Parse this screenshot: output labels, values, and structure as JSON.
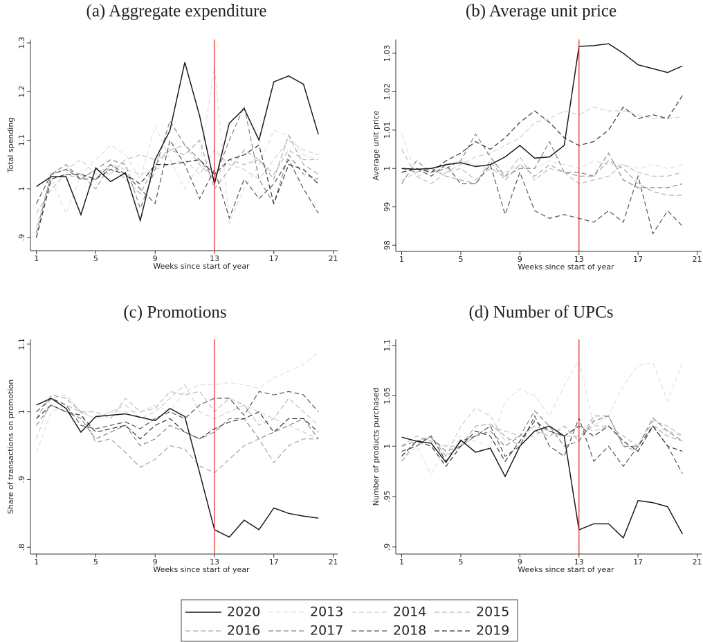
{
  "chart_data": [
    {
      "type": "line",
      "title": "(a) Aggregate expenditure",
      "xlabel": "Weeks since start of year",
      "ylabel": "Total spending",
      "x": [
        1,
        2,
        3,
        4,
        5,
        6,
        7,
        8,
        9,
        10,
        11,
        12,
        13,
        14,
        15,
        16,
        17,
        18,
        19,
        20
      ],
      "xlim": [
        0.6,
        21.3
      ],
      "xticks": [
        1,
        5,
        9,
        13,
        17,
        21
      ],
      "ylim": [
        0.873,
        1.307
      ],
      "yticks": [
        {
          "value": 0.9,
          "label": ".9"
        },
        1,
        1.1,
        1.2,
        1.3
      ],
      "vline": 13,
      "vline_color": "#e8302a",
      "series": [
        {
          "name": "2020",
          "color": "#1a1a1a",
          "line_style": "solid",
          "values": [
            1.005,
            1.025,
            1.025,
            0.947,
            1.043,
            1.015,
            1.033,
            0.935,
            1.06,
            1.12,
            1.26,
            1.15,
            1.01,
            1.135,
            1.165,
            1.1,
            1.22,
            1.232,
            1.215,
            1.112
          ]
        },
        {
          "name": "2013",
          "color": "#e0e0e0",
          "line_style": "dashed",
          "values": [
            0.9,
            1.02,
            0.95,
            1.03,
            1.06,
            1.09,
            1.07,
            1.02,
            1.13,
            1.06,
            1.0,
            1.05,
            1.25,
            0.93,
            1.0,
            1.05,
            1.12,
            1.11,
            1.07,
            1.06
          ]
        },
        {
          "name": "2014",
          "color": "#cfcfcf",
          "line_style": "dashed",
          "values": [
            0.92,
            1.03,
            1.04,
            1.06,
            1.03,
            1.05,
            1.04,
            1.03,
            1.04,
            1.05,
            1.06,
            1.03,
            1.08,
            1.05,
            1.04,
            1.02,
            1.06,
            1.1,
            1.08,
            1.07
          ]
        },
        {
          "name": "2015",
          "color": "#bdbdbd",
          "line_style": "dashed",
          "values": [
            0.95,
            1.0,
            1.03,
            1.02,
            1.04,
            1.03,
            1.06,
            1.07,
            1.06,
            1.08,
            1.09,
            1.05,
            1.02,
            1.06,
            1.05,
            1.06,
            1.03,
            1.08,
            1.06,
            1.06
          ]
        },
        {
          "name": "2016",
          "color": "#a6a6a6",
          "line_style": "dashed",
          "values": [
            0.9,
            1.03,
            1.04,
            1.03,
            1.0,
            1.05,
            1.02,
            0.99,
            1.05,
            1.08,
            1.07,
            1.1,
            1.0,
            1.04,
            1.08,
            1.06,
            1.02,
            1.11,
            1.05,
            1.03
          ]
        },
        {
          "name": "2017",
          "color": "#858585",
          "line_style": "dashed",
          "values": [
            0.91,
            1.03,
            1.05,
            1.02,
            1.04,
            1.06,
            1.05,
            0.96,
            1.04,
            1.14,
            1.09,
            1.06,
            1.02,
            1.1,
            1.17,
            1.02,
            0.97,
            1.07,
            1.03,
            1.02
          ]
        },
        {
          "name": "2018",
          "color": "#555555",
          "line_style": "dashed",
          "values": [
            0.97,
            1.03,
            1.04,
            1.02,
            1.02,
            1.05,
            1.03,
            1.0,
            0.97,
            1.1,
            1.05,
            0.98,
            1.04,
            0.94,
            1.02,
            0.98,
            1.01,
            1.06,
            1.0,
            0.95
          ]
        },
        {
          "name": "2019",
          "color": "#333333",
          "line_style": "dashed",
          "values": [
            0.9,
            1.02,
            1.03,
            1.03,
            1.02,
            1.04,
            1.03,
            1.01,
            1.05,
            1.05,
            1.055,
            1.06,
            1.03,
            1.06,
            1.07,
            1.09,
            0.97,
            1.05,
            1.04,
            1.01
          ]
        }
      ]
    },
    {
      "type": "line",
      "title": "(b) Average unit price",
      "xlabel": "Weeks since start of year",
      "ylabel": "Average unit price",
      "x": [
        1,
        2,
        3,
        4,
        5,
        6,
        7,
        8,
        9,
        10,
        11,
        12,
        13,
        14,
        15,
        16,
        17,
        18,
        19,
        20
      ],
      "xlim": [
        0.6,
        21.3
      ],
      "xticks": [
        1,
        5,
        9,
        13,
        17,
        21
      ],
      "ylim": [
        0.9784,
        1.0336
      ],
      "yticks": [
        {
          "value": 0.98,
          "label": "98"
        },
        {
          "value": 0.99,
          "label": "99"
        },
        1,
        1.01,
        1.02,
        1.03
      ],
      "vline": 13,
      "vline_color": "#e8302a",
      "series": [
        {
          "name": "2020",
          "color": "#1a1a1a",
          "line_style": "solid",
          "values": [
            1.0,
            0.9998,
            1.0,
            1.001,
            1.0015,
            1.0005,
            1.001,
            1.003,
            1.006,
            1.0027,
            1.003,
            1.006,
            1.0318,
            1.032,
            1.0325,
            1.03,
            1.027,
            1.026,
            1.025,
            1.0267
          ]
        },
        {
          "name": "2013",
          "color": "#e0e0e0",
          "line_style": "dashed",
          "values": [
            1.009,
            0.998,
            0.999,
            1.001,
            1.002,
            1.001,
            1.0,
            0.999,
            1.001,
            1.0,
            1.002,
            1.001,
            1.0,
            1.002,
            1.001,
            1.001,
            1.0,
            1.001,
            1.0,
            1.001
          ]
        },
        {
          "name": "2014",
          "color": "#cfcfcf",
          "line_style": "dashed",
          "values": [
            0.997,
            0.999,
            1.0,
            0.999,
            1.001,
            1.003,
            1.004,
            1.006,
            1.008,
            1.012,
            1.013,
            1.015,
            1.014,
            1.016,
            1.015,
            1.015,
            1.014,
            1.013,
            1.013,
            1.0135
          ]
        },
        {
          "name": "2015",
          "color": "#bdbdbd",
          "line_style": "dashed",
          "values": [
            1.005,
            0.998,
            0.996,
            0.999,
            1.0,
            0.997,
            1.0,
            0.998,
            1.003,
            0.997,
            1.0,
            0.999,
            0.996,
            0.997,
            0.998,
            1.001,
            0.999,
            0.998,
            0.998,
            0.999
          ]
        },
        {
          "name": "2016",
          "color": "#a6a6a6",
          "line_style": "dashed",
          "values": [
            1.0,
            0.999,
            1.0,
            0.998,
            0.997,
            0.996,
            1.002,
            0.997,
            1.001,
            0.998,
            1.001,
            0.999,
            0.998,
            0.998,
            1.002,
            1.0,
            0.996,
            0.994,
            0.993,
            0.993
          ]
        },
        {
          "name": "2017",
          "color": "#858585",
          "line_style": "dashed",
          "values": [
            0.996,
            1.002,
            0.999,
            1.0,
            1.002,
            1.009,
            1.003,
            0.998,
            1.0,
            1.0,
            1.007,
            0.999,
            0.999,
            0.998,
            1.004,
            0.997,
            0.995,
            0.995,
            0.995,
            0.996
          ]
        },
        {
          "name": "2018",
          "color": "#555555",
          "line_style": "dashed",
          "values": [
            0.999,
            1.0,
            0.998,
            1.001,
            0.996,
            0.996,
            1.001,
            0.988,
            0.999,
            0.989,
            0.987,
            0.988,
            0.987,
            0.986,
            0.989,
            0.986,
            0.998,
            0.983,
            0.989,
            0.985
          ]
        },
        {
          "name": "2019",
          "color": "#333333",
          "line_style": "dashed",
          "values": [
            0.999,
            1.0,
            0.999,
            1.002,
            1.004,
            1.007,
            1.005,
            1.008,
            1.012,
            1.015,
            1.012,
            1.008,
            1.006,
            1.007,
            1.01,
            1.016,
            1.013,
            1.014,
            1.013,
            1.019
          ]
        }
      ]
    },
    {
      "type": "line",
      "title": "(c) Promotions",
      "xlabel": "Weeks since start of year",
      "ylabel": "Share of transactions on promotion",
      "x": [
        1,
        2,
        3,
        4,
        5,
        6,
        7,
        8,
        9,
        10,
        11,
        12,
        13,
        14,
        15,
        16,
        17,
        18,
        19,
        20
      ],
      "xlim": [
        0.6,
        21.3
      ],
      "xticks": [
        1,
        5,
        9,
        13,
        17,
        21
      ],
      "ylim": [
        0.79,
        1.107
      ],
      "yticks": [
        {
          "value": 0.8,
          "label": ".8"
        },
        {
          "value": 0.9,
          "label": ".9"
        },
        1,
        1.1
      ],
      "vline": 13,
      "vline_color": "#e8302a",
      "series": [
        {
          "name": "2020",
          "color": "#1a1a1a",
          "line_style": "solid",
          "values": [
            1.01,
            1.02,
            1.005,
            0.97,
            0.993,
            0.995,
            0.997,
            0.992,
            0.987,
            1.005,
            0.993,
            0.91,
            0.826,
            0.815,
            0.84,
            0.826,
            0.858,
            0.85,
            0.846,
            0.843
          ]
        },
        {
          "name": "2013",
          "color": "#e0e0e0",
          "line_style": "dashed",
          "values": [
            0.94,
            1.0,
            1.01,
            1.0,
            0.99,
            1.0,
            1.0,
            1.0,
            1.01,
            1.0,
            1.03,
            1.04,
            1.04,
            1.043,
            1.04,
            1.035,
            1.05,
            1.06,
            1.07,
            1.088
          ]
        },
        {
          "name": "2014",
          "color": "#cfcfcf",
          "line_style": "dashed",
          "values": [
            0.96,
            1.02,
            1.025,
            1.0,
            0.99,
            1.0,
            1.01,
            0.99,
            1.0,
            1.02,
            1.04,
            1.0,
            0.99,
            1.0,
            1.01,
            1.0,
            0.99,
            0.98,
            0.97,
            0.96
          ]
        },
        {
          "name": "2015",
          "color": "#bdbdbd",
          "line_style": "dashed",
          "values": [
            1.0,
            1.02,
            1.01,
            1.0,
            1.0,
            0.99,
            1.02,
            1.0,
            1.005,
            1.03,
            1.025,
            1.03,
            1.0,
            1.02,
            1.01,
            0.98,
            0.99,
            1.02,
            1.0,
            0.98
          ]
        },
        {
          "name": "2016",
          "color": "#a6a6a6",
          "line_style": "dashed",
          "values": [
            0.99,
            1.025,
            1.02,
            1.0,
            0.955,
            0.96,
            0.94,
            0.918,
            0.93,
            0.95,
            0.945,
            0.92,
            0.91,
            0.93,
            0.95,
            0.96,
            0.925,
            0.95,
            0.96,
            0.96
          ]
        },
        {
          "name": "2017",
          "color": "#858585",
          "line_style": "dashed",
          "values": [
            0.98,
            1.01,
            1.0,
            0.99,
            0.96,
            0.97,
            0.98,
            0.95,
            0.96,
            0.98,
            0.97,
            0.96,
            0.97,
            0.99,
            0.99,
            0.96,
            0.97,
            0.98,
            0.99,
            0.96
          ]
        },
        {
          "name": "2018",
          "color": "#555555",
          "line_style": "dashed",
          "values": [
            1.0,
            1.02,
            1.01,
            0.98,
            0.975,
            0.98,
            0.985,
            0.975,
            0.99,
            1.0,
            0.99,
            1.01,
            1.02,
            1.02,
            0.995,
            1.03,
            1.025,
            1.03,
            1.025,
            1.0
          ]
        },
        {
          "name": "2019",
          "color": "#333333",
          "line_style": "dashed",
          "values": [
            0.99,
            1.01,
            1.0,
            0.995,
            0.97,
            0.975,
            0.98,
            0.96,
            0.98,
            0.99,
            0.97,
            0.96,
            0.975,
            0.985,
            0.99,
            1.0,
            0.97,
            0.99,
            0.99,
            0.97
          ]
        }
      ]
    },
    {
      "type": "line",
      "title": "(d) Number of UPCs",
      "xlabel": "Weeks since start of year",
      "ylabel": "Number of products purchased",
      "x": [
        1,
        2,
        3,
        4,
        5,
        6,
        7,
        8,
        9,
        10,
        11,
        12,
        13,
        14,
        15,
        16,
        17,
        18,
        19,
        20
      ],
      "xlim": [
        0.6,
        21.3
      ],
      "xticks": [
        1,
        5,
        9,
        13,
        17,
        21
      ],
      "ylim": [
        0.893,
        1.106
      ],
      "yticks": [
        {
          "value": 0.9,
          "label": ".9"
        },
        {
          "value": 0.95,
          "label": ".95"
        },
        1,
        1.05,
        1.1
      ],
      "vline": 13,
      "vline_color": "#e8302a",
      "series": [
        {
          "name": "2020",
          "color": "#1a1a1a",
          "line_style": "solid",
          "values": [
            1.009,
            1.005,
            1.003,
            0.984,
            1.006,
            0.994,
            0.998,
            0.97,
            1.0,
            1.015,
            1.02,
            1.01,
            0.917,
            0.923,
            0.923,
            0.909,
            0.946,
            0.944,
            0.94,
            0.913
          ]
        },
        {
          "name": "2013",
          "color": "#e0e0e0",
          "line_style": "dashed",
          "values": [
            0.985,
            1.0,
            0.972,
            1.0,
            1.01,
            1.005,
            1.0,
            1.045,
            1.057,
            1.05,
            1.03,
            1.06,
            1.085,
            1.02,
            1.03,
            1.06,
            1.08,
            1.083,
            1.045,
            1.083
          ]
        },
        {
          "name": "2014",
          "color": "#cfcfcf",
          "line_style": "dashed",
          "values": [
            0.99,
            1.005,
            1.0,
            0.99,
            1.02,
            1.038,
            1.03,
            1.005,
            1.01,
            1.01,
            1.02,
            1.01,
            1.02,
            1.015,
            1.02,
            1.01,
            1.0,
            1.02,
            1.015,
            1.01
          ]
        },
        {
          "name": "2015",
          "color": "#bdbdbd",
          "line_style": "dashed",
          "values": [
            1.0,
            1.01,
            1.005,
            1.0,
            1.0,
            1.01,
            1.02,
            1.015,
            1.01,
            1.02,
            1.015,
            1.01,
            1.01,
            1.02,
            1.02,
            1.01,
            1.0,
            1.025,
            1.02,
            1.01
          ]
        },
        {
          "name": "2016",
          "color": "#a6a6a6",
          "line_style": "dashed",
          "values": [
            0.985,
            1.005,
            1.01,
            0.99,
            1.0,
            1.02,
            1.022,
            1.01,
            1.0,
            1.015,
            1.01,
            1.02,
            1.005,
            1.03,
            1.03,
            1.0,
            0.995,
            1.02,
            1.01,
            1.005
          ]
        },
        {
          "name": "2017",
          "color": "#858585",
          "line_style": "dashed",
          "values": [
            1.0,
            1.005,
            1.008,
            0.995,
            1.0,
            1.01,
            1.015,
            1.0,
            1.01,
            1.035,
            1.02,
            1.0,
            1.005,
            1.025,
            1.03,
            1.0,
            1.0,
            1.028,
            1.015,
            1.005
          ]
        },
        {
          "name": "2018",
          "color": "#555555",
          "line_style": "dashed",
          "values": [
            0.995,
            1.0,
            1.01,
            0.985,
            1.005,
            1.01,
            1.02,
            0.99,
            1.0,
            1.03,
            1.0,
            0.99,
            1.028,
            0.985,
            1.0,
            0.98,
            1.0,
            1.02,
            1.0,
            0.973
          ]
        },
        {
          "name": "2019",
          "color": "#333333",
          "line_style": "dashed",
          "values": [
            0.99,
            1.005,
            1.0,
            0.98,
            1.0,
            1.015,
            1.01,
            0.985,
            1.005,
            1.025,
            1.015,
            1.01,
            1.02,
            1.01,
            1.02,
            1.005,
            0.995,
            1.02,
            1.0,
            0.995
          ]
        }
      ]
    }
  ]
}
